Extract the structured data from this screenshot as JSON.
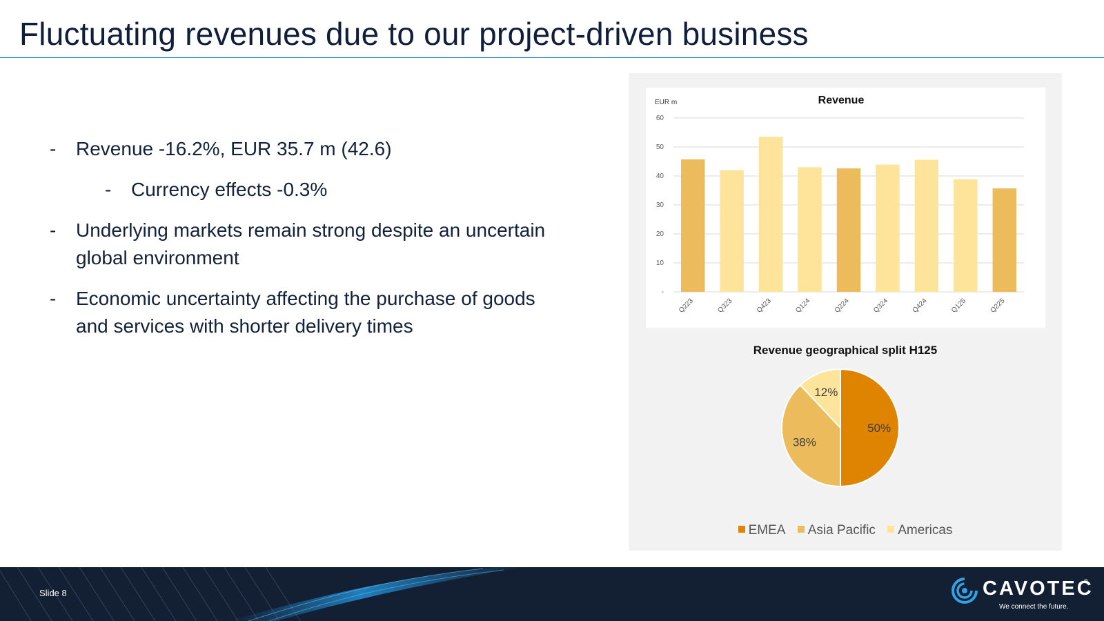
{
  "slide": {
    "title": "Fluctuating revenues due to our project-driven business",
    "slide_number": "Slide 8"
  },
  "bullets": [
    {
      "level": 1,
      "text": "Revenue -16.2%, EUR 35.7 m (42.6)"
    },
    {
      "level": 2,
      "text": "Currency effects -0.3%"
    },
    {
      "level": 1,
      "text": "Underlying markets remain strong despite an uncertain global environment"
    },
    {
      "level": 1,
      "text": "Economic uncertainty affecting the purchase of goods and services with shorter delivery times"
    }
  ],
  "bullet_marker": "-",
  "brand": {
    "name": "CAVOTEC",
    "registered": "®",
    "tagline": "We connect the future."
  },
  "colors": {
    "title_rule": "#1f8ad0",
    "footer_bg": "#131f33",
    "bar_dark": "#ebbb5c",
    "bar_light": "#fde49a",
    "emea": "#df8400",
    "asia_pacific": "#ebbb5c",
    "americas": "#fde49a"
  },
  "chart_data": [
    {
      "type": "bar",
      "title": "Revenue",
      "ylabel": "EUR m",
      "xlabel": "",
      "categories": [
        "Q223",
        "Q323",
        "Q423",
        "Q124",
        "Q224",
        "Q324",
        "Q424",
        "Q125",
        "Q225"
      ],
      "values": [
        45.7,
        42.0,
        53.5,
        43.0,
        42.6,
        43.9,
        45.6,
        38.8,
        35.7
      ],
      "highlight": [
        true,
        false,
        false,
        false,
        true,
        false,
        false,
        false,
        true
      ],
      "ylim": [
        0,
        60
      ],
      "yticks": [
        0,
        10,
        20,
        30,
        40,
        50,
        60
      ],
      "ytick_labels": [
        "-",
        "10",
        "20",
        "30",
        "40",
        "50",
        "60"
      ],
      "grid": true,
      "legend": false
    },
    {
      "type": "pie",
      "title": "Revenue geographical split H125",
      "labels": [
        "EMEA",
        "Asia Pacific",
        "Americas"
      ],
      "values": [
        50,
        38,
        12
      ],
      "value_labels": [
        "50%",
        "38%",
        "12%"
      ],
      "legend": "bottom"
    }
  ]
}
